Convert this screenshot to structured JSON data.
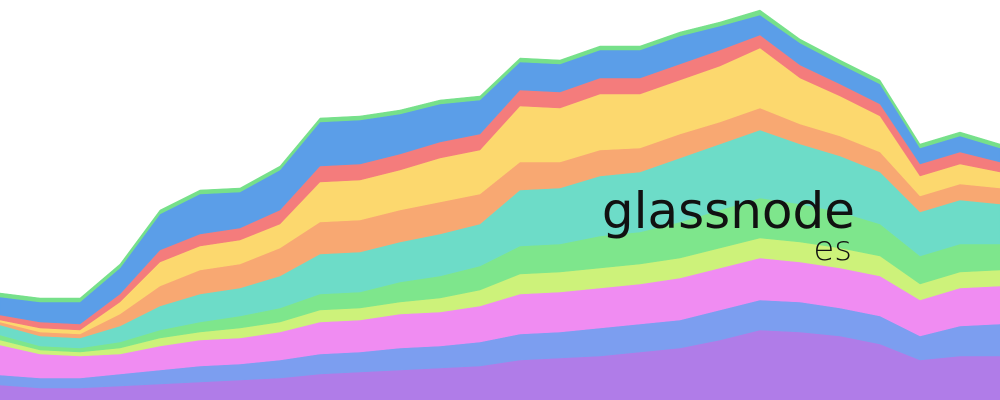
{
  "chart_data": {
    "type": "area",
    "stacked": true,
    "watermark": "glassnode",
    "watermark_sub": "es",
    "ylim": [
      0,
      100
    ],
    "series": [
      {
        "name": null,
        "color": "#b07ce8",
        "values": [
          3.75,
          3,
          3,
          3.5,
          4,
          4.5,
          5,
          5.5,
          6.5,
          7,
          7.5,
          8,
          8.5,
          10,
          10.5,
          11,
          12,
          13,
          15,
          17.5,
          17,
          16,
          14,
          10,
          11,
          11
        ]
      },
      {
        "name": null,
        "color": "#7c9ef0",
        "values": [
          2.5,
          2.5,
          2.5,
          3,
          3.5,
          4,
          4,
          4.5,
          5,
          5,
          5.5,
          5.5,
          6,
          6.5,
          6.5,
          7,
          7,
          7,
          7.5,
          7.5,
          7.5,
          7,
          7,
          6,
          7.5,
          8
        ]
      },
      {
        "name": null,
        "color": "#f08cf2",
        "values": [
          7.5,
          6,
          5.5,
          5,
          6,
          6.5,
          6.5,
          7,
          8,
          8,
          8.5,
          8.5,
          9,
          10,
          10,
          10,
          10,
          10.5,
          10.5,
          10.5,
          10,
          10,
          10,
          9,
          9.5,
          9.5
        ]
      },
      {
        "name": null,
        "color": "#cdf27a",
        "values": [
          1.25,
          1,
          1,
          1.5,
          2,
          2,
          2.5,
          2.5,
          3,
          3,
          3,
          3.5,
          4,
          5,
          5,
          5,
          5,
          5,
          5,
          5,
          5,
          5,
          5,
          4,
          4,
          4
        ]
      },
      {
        "name": null,
        "color": "#7ee68c",
        "values": [
          1.25,
          1,
          1,
          1.5,
          2,
          2.5,
          3,
          3.5,
          4,
          4,
          5,
          5.5,
          6,
          7,
          7,
          8,
          8,
          9,
          9.5,
          10,
          9.5,
          9,
          8,
          7,
          7,
          6.5
        ]
      },
      {
        "name": null,
        "color": "#6ddcc8",
        "values": [
          2.5,
          2.5,
          2.5,
          4,
          6,
          7,
          7,
          8,
          10,
          10,
          10,
          10.5,
          10.5,
          14,
          14,
          15,
          15,
          16,
          16.5,
          17,
          15,
          14,
          13,
          11,
          11,
          10
        ]
      },
      {
        "name": null,
        "color": "#f8a872",
        "values": [
          0.75,
          1,
          1,
          3,
          5,
          6,
          6,
          7,
          8,
          8,
          8,
          8,
          7.5,
          7,
          6.5,
          6.5,
          6,
          6,
          5.5,
          5.5,
          5,
          5,
          5,
          4,
          4,
          4
        ]
      },
      {
        "name": null,
        "color": "#fcd86e",
        "values": [
          0.5,
          1,
          1,
          3,
          6,
          6,
          6,
          6,
          10,
          10,
          10,
          11,
          11,
          14,
          13.5,
          14,
          13.5,
          13.5,
          14,
          15,
          11.5,
          10,
          9,
          5,
          5,
          4
        ]
      },
      {
        "name": null,
        "color": "#f47c7c",
        "values": [
          1.25,
          1.5,
          1.5,
          2,
          3,
          3,
          3,
          3.5,
          4,
          4,
          4,
          4,
          4,
          4,
          4,
          4,
          4,
          4,
          4,
          3.25,
          3.25,
          3,
          3,
          3,
          3,
          2.5
        ]
      },
      {
        "name": null,
        "color": "#5b9ee8",
        "values": [
          4.5,
          5,
          5.5,
          6.5,
          9,
          10,
          9,
          10,
          11,
          11,
          10,
          9.5,
          8.5,
          7,
          7,
          7,
          7,
          7,
          6,
          5,
          5.5,
          5,
          5,
          4,
          4,
          3.5
        ]
      },
      {
        "name": null,
        "color": "#76e08a",
        "values": [
          1,
          1,
          1,
          1,
          1,
          1,
          1,
          1,
          1,
          1,
          1,
          1,
          1,
          1,
          1,
          1,
          1,
          1,
          1,
          1.25,
          1,
          1,
          1,
          1,
          1,
          1
        ]
      }
    ]
  }
}
